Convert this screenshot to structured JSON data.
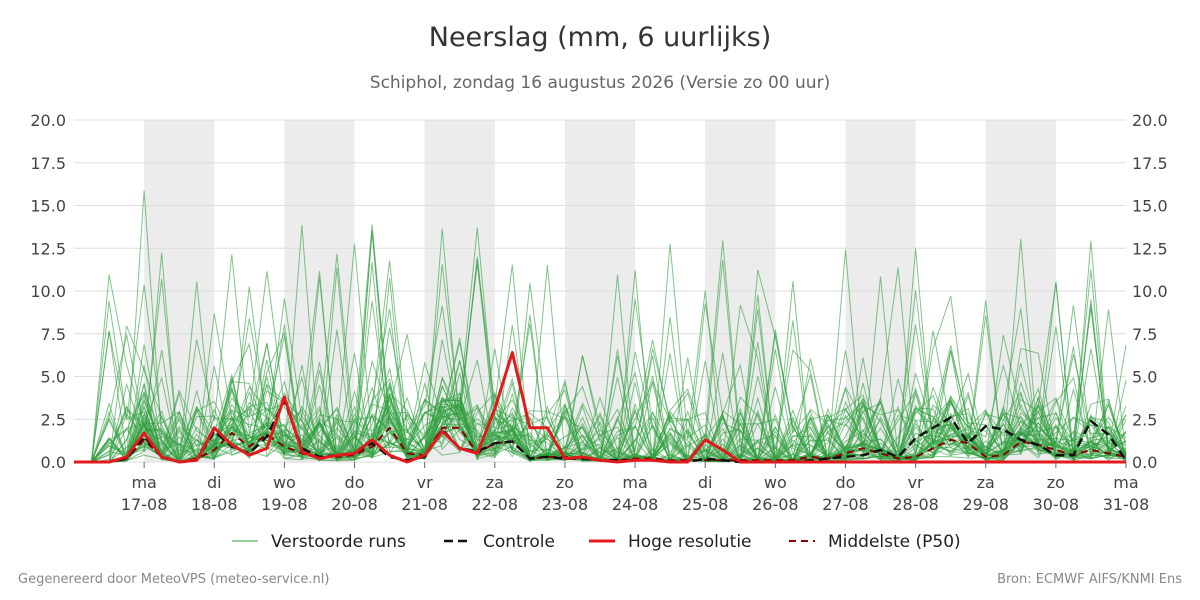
{
  "title": "Neerslag (mm, 6 uurlijks)",
  "subtitle": "Schiphol, zondag 16 augustus 2026 (Versie zo 00 uur)",
  "footer": {
    "left": "Gegenereerd door MeteoVPS (meteo-service.nl)",
    "right": "Bron: ECMWF AIFS/KNMI Ens"
  },
  "colors": {
    "ensemble": "#2e9e3e",
    "control": "#111111",
    "high_res": "#e31a1c",
    "p50": "#8b0000",
    "weekend_band": "#ececec",
    "grid": "#dddddd"
  },
  "chart_data": {
    "type": "line",
    "ylim": [
      0,
      20
    ],
    "yticks": [
      "0.0",
      "2.5",
      "5.0",
      "7.5",
      "10.0",
      "12.5",
      "15.0",
      "17.5",
      "20.0"
    ],
    "x_start": "2026-08-16",
    "x_end": "2026-08-31",
    "x_step_hours": 6,
    "weekend_bands": [
      [
        "2026-08-17",
        "2026-08-18"
      ],
      [
        "2026-08-19",
        "2026-08-20"
      ],
      [
        "2026-08-21",
        "2026-08-22"
      ],
      [
        "2026-08-23",
        "2026-08-24"
      ],
      [
        "2026-08-25",
        "2026-08-26"
      ],
      [
        "2026-08-27",
        "2026-08-28"
      ],
      [
        "2026-08-29",
        "2026-08-30"
      ]
    ],
    "xticks": [
      {
        "day": "ma",
        "date": "17-08"
      },
      {
        "day": "di",
        "date": "18-08"
      },
      {
        "day": "wo",
        "date": "19-08"
      },
      {
        "day": "do",
        "date": "20-08"
      },
      {
        "day": "vr",
        "date": "21-08"
      },
      {
        "day": "za",
        "date": "22-08"
      },
      {
        "day": "zo",
        "date": "23-08"
      },
      {
        "day": "ma",
        "date": "24-08"
      },
      {
        "day": "di",
        "date": "25-08"
      },
      {
        "day": "wo",
        "date": "26-08"
      },
      {
        "day": "do",
        "date": "27-08"
      },
      {
        "day": "vr",
        "date": "28-08"
      },
      {
        "day": "za",
        "date": "29-08"
      },
      {
        "day": "zo",
        "date": "30-08"
      },
      {
        "day": "ma",
        "date": "31-08"
      }
    ],
    "legend": [
      "Verstoorde runs",
      "Controle",
      "Hoge resolutie",
      "Middelste (P50)"
    ],
    "series": [
      {
        "name": "Hoge resolutie",
        "values": [
          0,
          0,
          0,
          0.3,
          1.7,
          0.3,
          0,
          0.1,
          2.0,
          1.0,
          0.4,
          0.8,
          3.8,
          0.6,
          0.2,
          0.4,
          0.5,
          1.3,
          0.4,
          0,
          0.4,
          1.8,
          0.8,
          0.5,
          3.1,
          6.4,
          2.0,
          2.0,
          0.2,
          0.3,
          0.1,
          0,
          0.1,
          0.1,
          0,
          0,
          1.3,
          0.7,
          0,
          0,
          0,
          0,
          0,
          0,
          0,
          0,
          0,
          0,
          0,
          0,
          0,
          0,
          0,
          0,
          0,
          0,
          0,
          0,
          0,
          0,
          0
        ]
      },
      {
        "name": "Controle",
        "values": [
          0,
          0,
          0,
          0.2,
          1.5,
          0.3,
          0,
          0.1,
          1.8,
          0.9,
          0.5,
          1.5,
          3.6,
          0.8,
          0.3,
          0.4,
          0.5,
          1.1,
          0.3,
          0.1,
          0.3,
          1.9,
          0.8,
          0.6,
          1.1,
          1.2,
          0.2,
          0.3,
          0.2,
          0.2,
          0.1,
          0.1,
          0.1,
          0.1,
          0,
          0,
          0.2,
          0.1,
          0,
          0,
          0,
          0,
          0.1,
          0.2,
          0.3,
          0.4,
          0.7,
          0.3,
          1.4,
          2.0,
          2.6,
          1.1,
          2.1,
          1.9,
          1.3,
          1.0,
          0.4,
          0.4,
          2.4,
          1.6,
          0.1
        ]
      },
      {
        "name": "Middelste (P50)",
        "values": [
          0,
          0,
          0,
          0.2,
          1.3,
          0.3,
          0,
          0.2,
          0.7,
          1.7,
          0.9,
          1.6,
          0.9,
          0.5,
          0.3,
          0.3,
          0.4,
          0.9,
          2.0,
          0.5,
          0.4,
          2.0,
          2.0,
          0.5,
          1.1,
          1.2,
          0.2,
          0.3,
          0.3,
          0.2,
          0.1,
          0.1,
          0.2,
          0.2,
          0.1,
          0.1,
          0.1,
          0.1,
          0.1,
          0.1,
          0.1,
          0.1,
          0.3,
          0.2,
          0.5,
          0.8,
          0.5,
          0.2,
          0.3,
          0.8,
          1.3,
          1.1,
          0.3,
          0.4,
          1.2,
          1.0,
          0.7,
          0.4,
          0.7,
          0.5,
          0.3
        ]
      }
    ]
  }
}
